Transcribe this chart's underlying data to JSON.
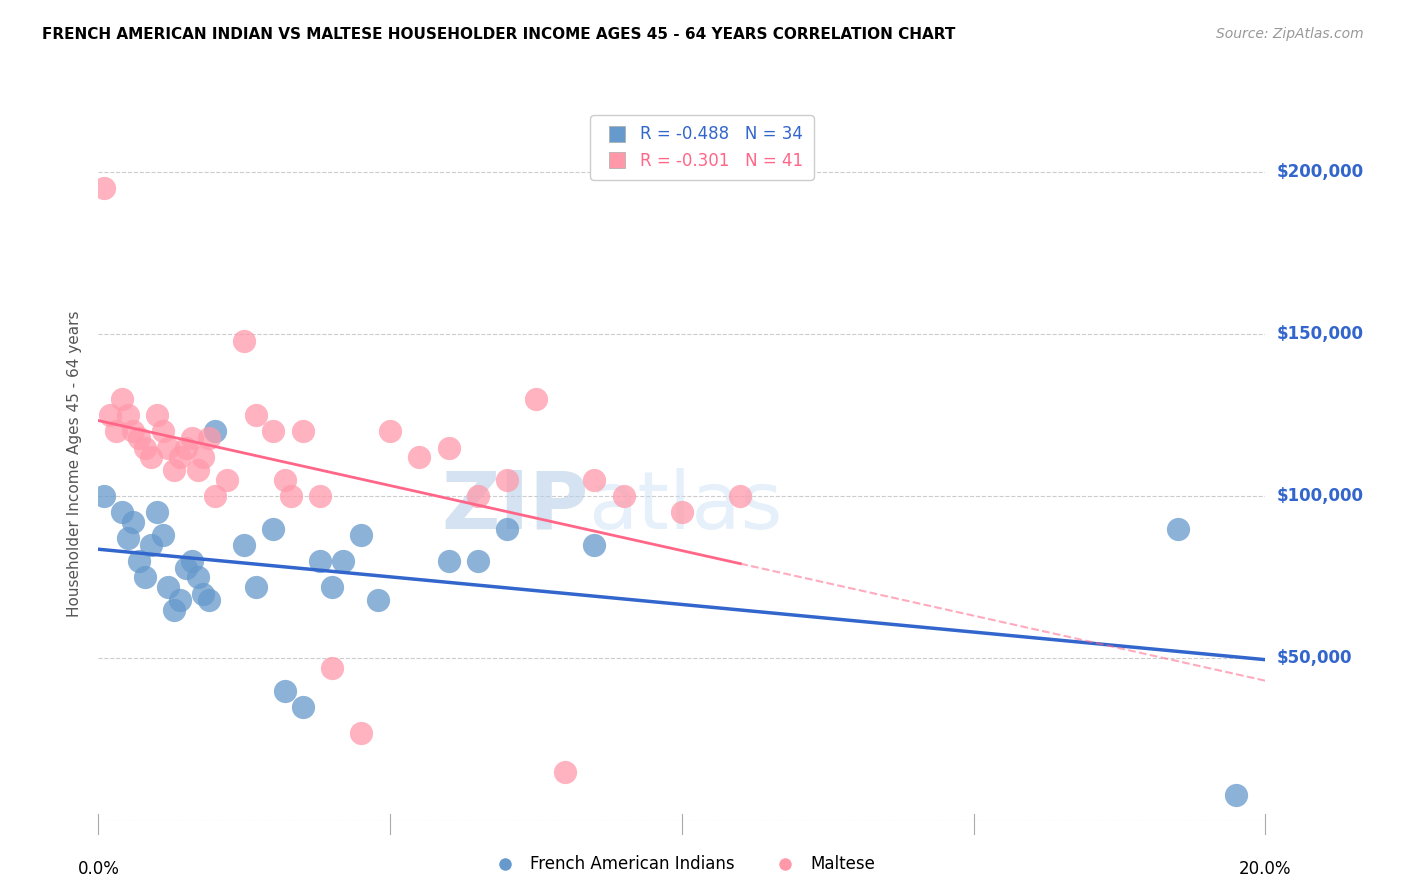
{
  "title": "FRENCH AMERICAN INDIAN VS MALTESE HOUSEHOLDER INCOME AGES 45 - 64 YEARS CORRELATION CHART",
  "source": "Source: ZipAtlas.com",
  "ylabel": "Householder Income Ages 45 - 64 years",
  "y_ticks": [
    0,
    50000,
    100000,
    150000,
    200000
  ],
  "y_tick_labels": [
    "",
    "$50,000",
    "$100,000",
    "$150,000",
    "$200,000"
  ],
  "xlim": [
    0.0,
    0.2
  ],
  "ylim": [
    0,
    220000
  ],
  "legend_entry1": "R = -0.488   N = 34",
  "legend_entry2": "R = -0.301   N = 41",
  "legend_label1": "French American Indians",
  "legend_label2": "Maltese",
  "blue_color": "#6699CC",
  "pink_color": "#FF99AA",
  "blue_line_color": "#3366CC",
  "pink_line_color": "#FF6688",
  "watermark_zip": "ZIP",
  "watermark_atlas": "atlas",
  "blue_x": [
    0.001,
    0.004,
    0.005,
    0.006,
    0.007,
    0.008,
    0.009,
    0.01,
    0.011,
    0.012,
    0.013,
    0.014,
    0.015,
    0.016,
    0.017,
    0.018,
    0.019,
    0.02,
    0.025,
    0.027,
    0.03,
    0.032,
    0.035,
    0.038,
    0.04,
    0.042,
    0.045,
    0.048,
    0.06,
    0.065,
    0.07,
    0.085,
    0.185,
    0.195
  ],
  "blue_y": [
    100000,
    95000,
    87000,
    92000,
    80000,
    75000,
    85000,
    95000,
    88000,
    72000,
    65000,
    68000,
    78000,
    80000,
    75000,
    70000,
    68000,
    120000,
    85000,
    72000,
    90000,
    40000,
    35000,
    80000,
    72000,
    80000,
    88000,
    68000,
    80000,
    80000,
    90000,
    85000,
    90000,
    8000
  ],
  "pink_x": [
    0.001,
    0.002,
    0.003,
    0.004,
    0.005,
    0.006,
    0.007,
    0.008,
    0.009,
    0.01,
    0.011,
    0.012,
    0.013,
    0.014,
    0.015,
    0.016,
    0.017,
    0.018,
    0.019,
    0.02,
    0.022,
    0.025,
    0.027,
    0.03,
    0.032,
    0.033,
    0.035,
    0.038,
    0.04,
    0.045,
    0.05,
    0.055,
    0.06,
    0.065,
    0.07,
    0.075,
    0.08,
    0.085,
    0.09,
    0.1,
    0.11
  ],
  "pink_y": [
    195000,
    125000,
    120000,
    130000,
    125000,
    120000,
    118000,
    115000,
    112000,
    125000,
    120000,
    115000,
    108000,
    112000,
    115000,
    118000,
    108000,
    112000,
    118000,
    100000,
    105000,
    148000,
    125000,
    120000,
    105000,
    100000,
    120000,
    100000,
    47000,
    27000,
    120000,
    112000,
    115000,
    100000,
    105000,
    130000,
    15000,
    105000,
    100000,
    95000,
    100000
  ]
}
